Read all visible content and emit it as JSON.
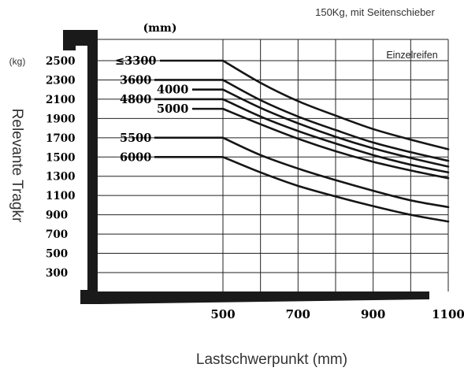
{
  "chart_data": {
    "type": "line",
    "title": "150Kg, mit Seitenschieber",
    "annotation": "Einzelreifen",
    "unit_top": "(mm)",
    "unit_left": "(kg)",
    "ylabel": "Relevante Tragkr",
    "xlabel": "Lastschwerpunkt (mm)",
    "x_ticks": [
      "500",
      "700",
      "900",
      "1100"
    ],
    "y_ticks": [
      "2500",
      "2300",
      "2100",
      "1900",
      "1700",
      "1500",
      "1300",
      "1100",
      "900",
      "700",
      "500",
      "300"
    ],
    "xlim": [
      500,
      1100
    ],
    "series": [
      {
        "name": "≤3300",
        "x": [
          500,
          600,
          700,
          800,
          900,
          1000,
          1100
        ],
        "y": [
          2500,
          2270,
          2080,
          1930,
          1790,
          1680,
          1580
        ]
      },
      {
        "name": "3600",
        "x": [
          500,
          600,
          700,
          800,
          900,
          1000,
          1100
        ],
        "y": [
          2300,
          2090,
          1920,
          1780,
          1650,
          1550,
          1460
        ]
      },
      {
        "name": "4000",
        "x": [
          500,
          600,
          700,
          800,
          900,
          1000,
          1100
        ],
        "y": [
          2200,
          2010,
          1850,
          1710,
          1590,
          1490,
          1400
        ]
      },
      {
        "name": "4800",
        "x": [
          500,
          600,
          700,
          800,
          900,
          1000,
          1100
        ],
        "y": [
          2100,
          1920,
          1770,
          1640,
          1520,
          1420,
          1340
        ]
      },
      {
        "name": "5000",
        "x": [
          500,
          600,
          700,
          800,
          900,
          1000,
          1100
        ],
        "y": [
          2000,
          1840,
          1690,
          1560,
          1450,
          1360,
          1280
        ]
      },
      {
        "name": "5500",
        "x": [
          500,
          600,
          700,
          800,
          900,
          1000,
          1100
        ],
        "y": [
          1700,
          1520,
          1380,
          1260,
          1150,
          1050,
          980
        ]
      },
      {
        "name": "6000",
        "x": [
          500,
          600,
          700,
          800,
          900,
          1000,
          1100
        ],
        "y": [
          1500,
          1340,
          1200,
          1090,
          990,
          900,
          830
        ]
      }
    ]
  }
}
